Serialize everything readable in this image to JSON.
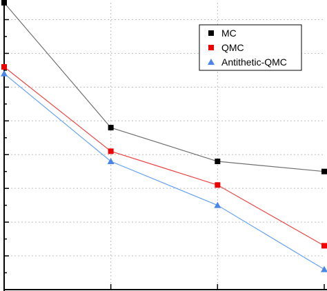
{
  "chart_data": {
    "type": "line",
    "x": [
      1,
      2,
      3,
      4
    ],
    "xlim": [
      1,
      4
    ],
    "ylim": [
      0,
      8.5
    ],
    "yticks": [
      0,
      0.5,
      1,
      1.5,
      2,
      2.5,
      3,
      3.5,
      4,
      4.5,
      5,
      5.5,
      6,
      6.5,
      7,
      7.5,
      8,
      8.5
    ],
    "grid": true,
    "legend_position": "top-right",
    "series": [
      {
        "name": "MC",
        "values": [
          8.5,
          4.8,
          3.8,
          3.5
        ],
        "color": "#707070",
        "marker_color": "#000000",
        "marker": "square"
      },
      {
        "name": "QMC",
        "values": [
          6.6,
          4.1,
          3.1,
          1.3
        ],
        "color": "#ee4444",
        "marker_color": "#ee0000",
        "marker": "square"
      },
      {
        "name": "Antithetic-QMC",
        "values": [
          6.4,
          3.8,
          2.5,
          0.6
        ],
        "color": "#66a3f0",
        "marker_color": "#4a86e8",
        "marker": "triangle"
      }
    ]
  }
}
